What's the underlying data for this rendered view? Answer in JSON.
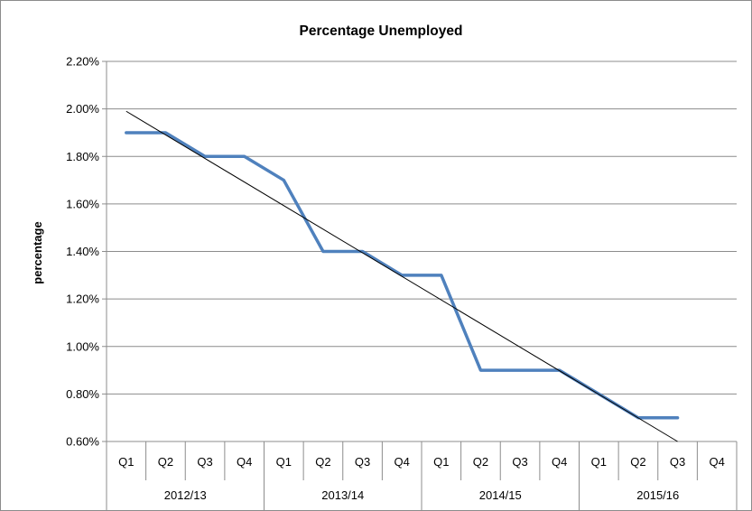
{
  "chart_data": {
    "type": "line",
    "title": "Percentage Unemployed",
    "xlabel": "",
    "ylabel": "percentage",
    "ylim": [
      0.006,
      0.022
    ],
    "yticks": [
      0.006,
      0.008,
      0.01,
      0.012,
      0.014,
      0.016,
      0.018,
      0.02,
      0.022
    ],
    "ytick_labels": [
      "0.60%",
      "0.80%",
      "1.00%",
      "1.20%",
      "1.40%",
      "1.60%",
      "1.80%",
      "2.00%",
      "2.20%"
    ],
    "grid": true,
    "legend": "none",
    "categories": [
      "Q1",
      "Q2",
      "Q3",
      "Q4",
      "Q1",
      "Q2",
      "Q3",
      "Q4",
      "Q1",
      "Q2",
      "Q3",
      "Q4",
      "Q1",
      "Q2",
      "Q3",
      "Q4"
    ],
    "category_groups": [
      {
        "label": "2012/13",
        "count": 4
      },
      {
        "label": "2013/14",
        "count": 4
      },
      {
        "label": "2014/15",
        "count": 4
      },
      {
        "label": "2015/16",
        "count": 4
      }
    ],
    "series": [
      {
        "values": [
          0.019,
          0.019,
          0.018,
          0.018,
          0.017,
          0.014,
          0.014,
          0.013,
          0.013,
          0.009,
          0.009,
          0.009,
          0.008,
          0.007,
          0.007,
          null
        ],
        "color": "#4f81bd"
      }
    ],
    "trendline": {
      "type": "linear",
      "start": 0.0199,
      "end": 0.006,
      "color": "#000000"
    }
  }
}
